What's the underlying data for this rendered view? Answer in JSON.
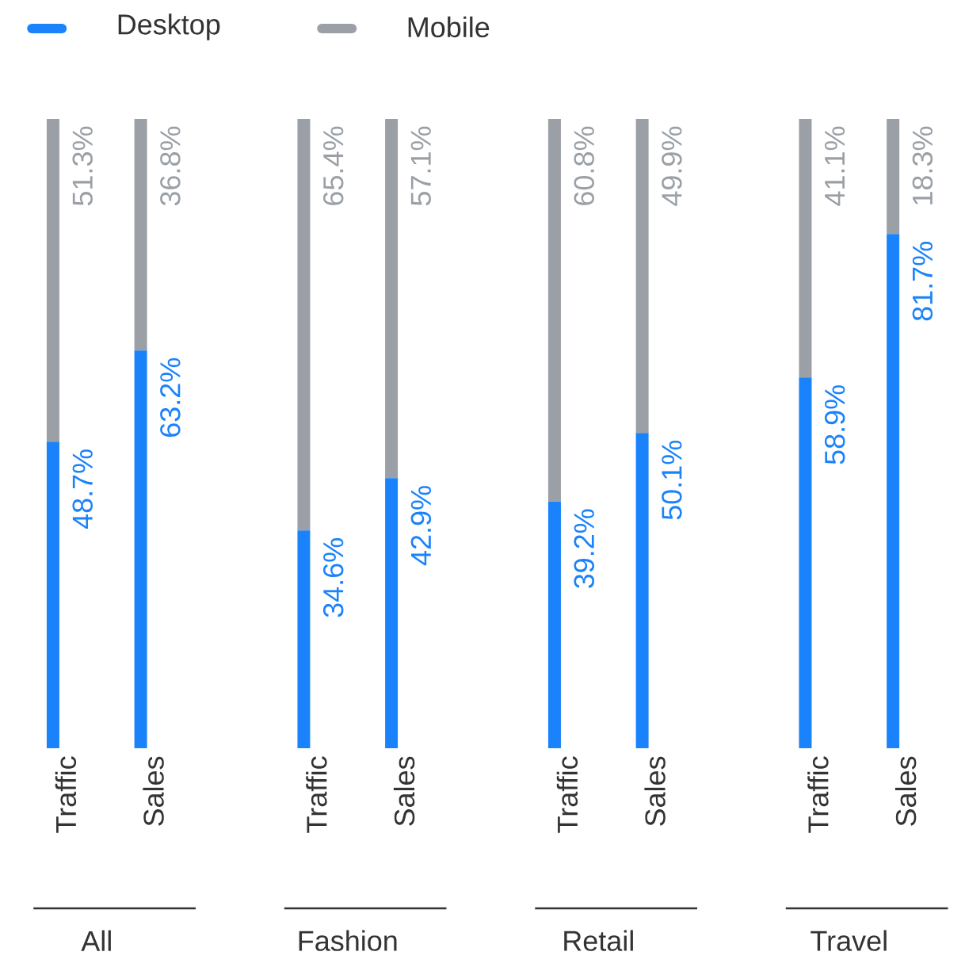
{
  "chart_data": {
    "type": "bar",
    "stacked": true,
    "legend": "top left",
    "categories": [
      "Traffic",
      "Sales",
      "Traffic",
      "Sales",
      "Traffic",
      "Sales",
      "Traffic",
      "Sales"
    ],
    "series": [
      {
        "name": "Desktop",
        "color": "#1a82fb",
        "values": [
          48.7,
          63.2,
          34.6,
          42.9,
          39.2,
          50.1,
          58.9,
          81.7
        ],
        "value_labels": [
          "48.7%",
          "63.2%",
          "34.6%",
          "42.9%",
          "39.2%",
          "50.1%",
          "58.9%",
          "81.7%"
        ]
      },
      {
        "name": "Mobile",
        "color": "#9aa0a6",
        "values": [
          51.3,
          36.8,
          65.4,
          57.1,
          60.8,
          49.9,
          41.1,
          18.3
        ],
        "value_labels": [
          "51.3%",
          "36.8%",
          "65.4%",
          "57.1%",
          "60.8%",
          "49.9%",
          "41.1%",
          "18.3%"
        ]
      }
    ],
    "annotations": [
      "All",
      "Fashion",
      "Retail",
      "Travel"
    ]
  }
}
